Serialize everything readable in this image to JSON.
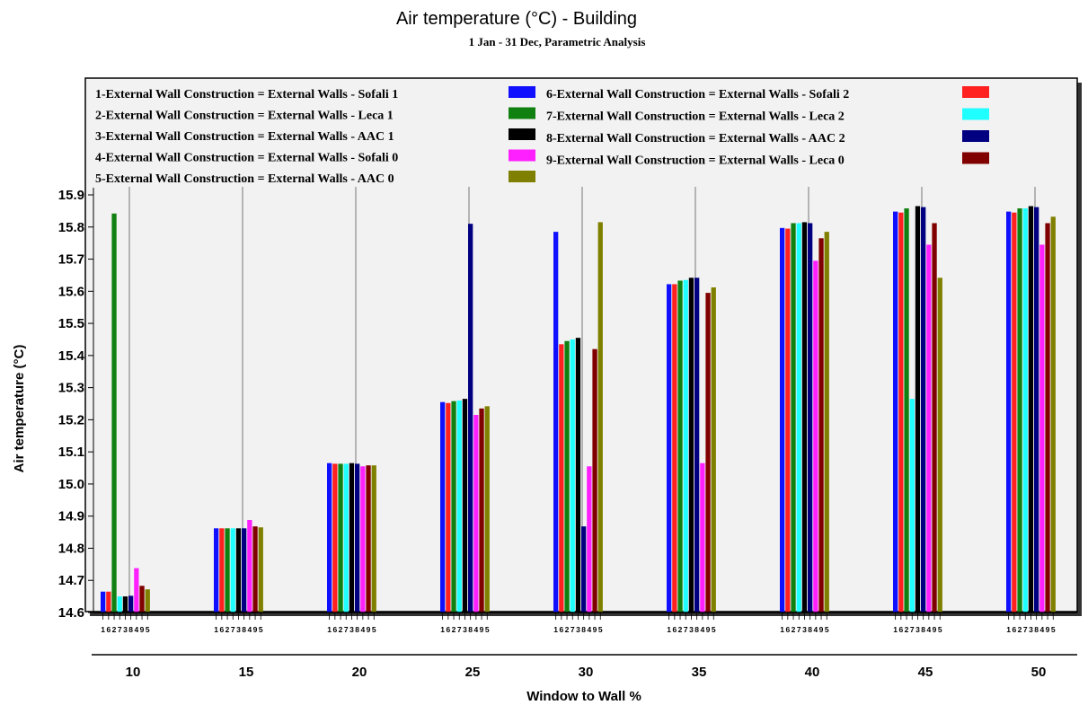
{
  "chart_data": {
    "type": "bar",
    "title": "Air temperature (°C) - Building",
    "subtitle": "1 Jan - 31 Dec, Parametric Analysis",
    "xlabel": "Window to Wall %",
    "ylabel": "Air temperature (°C)",
    "ylim": [
      14.6,
      15.9
    ],
    "yticks": [
      "14.6",
      "14.7",
      "14.8",
      "14.9",
      "15.0",
      "15.1",
      "15.2",
      "15.3",
      "15.4",
      "15.5",
      "15.6",
      "15.7",
      "15.8",
      "15.9"
    ],
    "categories": [
      "10",
      "15",
      "20",
      "25",
      "30",
      "35",
      "40",
      "45",
      "50"
    ],
    "legend_placement": "top",
    "bar_order": [
      "1",
      "6",
      "2",
      "7",
      "3",
      "8",
      "4",
      "9",
      "5"
    ],
    "series": [
      {
        "id": "1",
        "name": "1-External Wall Construction = External Walls - Sofali 1",
        "color": "#1010ff",
        "values": [
          14.665,
          14.862,
          15.065,
          15.255,
          15.785,
          15.622,
          15.797,
          15.848,
          15.848
        ]
      },
      {
        "id": "6",
        "name": "6-External Wall Construction = External Walls - Sofali 2",
        "color": "#ff2020",
        "values": [
          14.665,
          14.862,
          15.063,
          15.252,
          15.435,
          15.622,
          15.795,
          15.845,
          15.845
        ]
      },
      {
        "id": "2",
        "name": "2-External Wall Construction = External Walls - Leca 1",
        "color": "#108010",
        "values": [
          15.842,
          14.862,
          15.063,
          15.258,
          15.445,
          15.633,
          15.812,
          15.858,
          15.858
        ]
      },
      {
        "id": "7",
        "name": "7-External Wall Construction = External Walls - Leca 2",
        "color": "#20ffff",
        "values": [
          14.65,
          14.862,
          15.063,
          15.26,
          15.45,
          15.635,
          15.812,
          15.265,
          15.858
        ]
      },
      {
        "id": "3",
        "name": "3-External Wall Construction = External Walls - AAC 1",
        "color": "#000000",
        "values": [
          14.65,
          14.862,
          15.065,
          15.265,
          15.455,
          15.642,
          15.815,
          15.865,
          15.865
        ]
      },
      {
        "id": "8",
        "name": "8-External Wall Construction = External Walls - AAC 2",
        "color": "#000080",
        "values": [
          14.652,
          14.862,
          15.063,
          15.81,
          14.868,
          15.642,
          15.812,
          15.862,
          15.862
        ]
      },
      {
        "id": "4",
        "name": "4-External Wall Construction = External Walls - Sofali 0",
        "color": "#ff20ff",
        "values": [
          14.738,
          14.888,
          15.055,
          15.215,
          15.055,
          15.065,
          15.695,
          15.745,
          15.745
        ]
      },
      {
        "id": "9",
        "name": "9-External Wall Construction = External Walls - Leca 0",
        "color": "#800000",
        "values": [
          14.683,
          14.868,
          15.058,
          15.235,
          15.42,
          15.595,
          15.765,
          15.812,
          15.812
        ]
      },
      {
        "id": "5",
        "name": "5-External Wall Construction = External Walls - AAC 0",
        "color": "#808000",
        "values": [
          14.672,
          14.865,
          15.058,
          15.242,
          15.815,
          15.612,
          15.785,
          15.642,
          15.832
        ]
      }
    ]
  }
}
